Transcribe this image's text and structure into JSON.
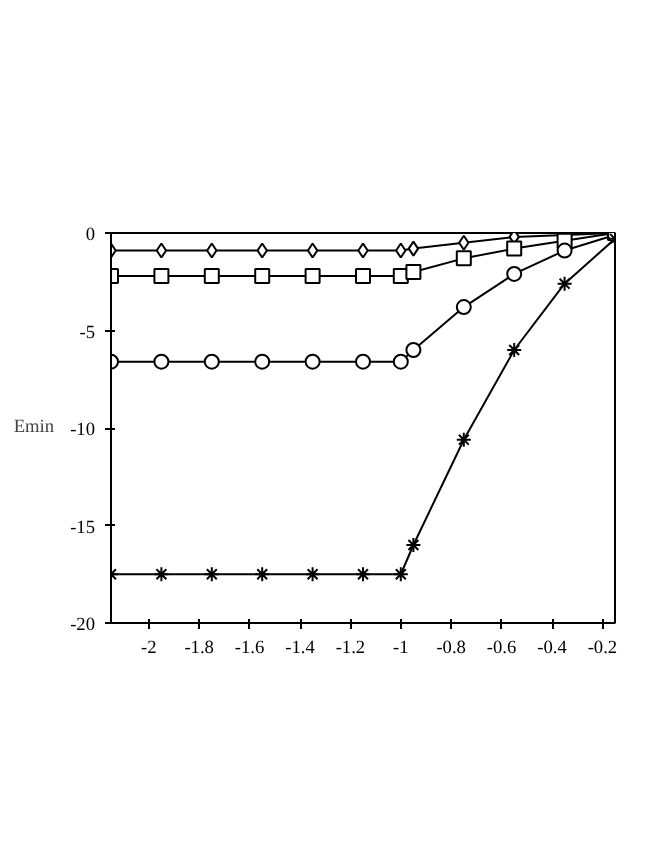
{
  "chart_data": {
    "type": "line",
    "ylabel": "Emin",
    "x": [
      -2.15,
      -1.95,
      -1.75,
      -1.55,
      -1.35,
      -1.15,
      -1.0,
      -0.95,
      -0.75,
      -0.55,
      -0.35,
      -0.15
    ],
    "series": [
      {
        "color": "#000000",
        "marker": "diamond",
        "values": [
          -0.9,
          -0.9,
          -0.9,
          -0.9,
          -0.9,
          -0.9,
          -0.9,
          -0.8,
          -0.5,
          -0.2,
          -0.1,
          0
        ]
      },
      {
        "color": "#000000",
        "marker": "square",
        "values": [
          -2.2,
          -2.2,
          -2.2,
          -2.2,
          -2.2,
          -2.2,
          -2.2,
          -2.0,
          -1.3,
          -0.8,
          -0.4,
          0
        ]
      },
      {
        "color": "#000000",
        "marker": "circle",
        "values": [
          -6.6,
          -6.6,
          -6.6,
          -6.6,
          -6.6,
          -6.6,
          -6.6,
          -6.0,
          -3.8,
          -2.1,
          -0.9,
          -0.1
        ]
      },
      {
        "color": "#000000",
        "marker": "cross",
        "values": [
          -17.5,
          -17.5,
          -17.5,
          -17.5,
          -17.5,
          -17.5,
          -17.5,
          -16.0,
          -10.6,
          -6.0,
          -2.6,
          -0.3
        ]
      }
    ],
    "xlim": [
      -2.15,
      -0.15
    ],
    "ylim": [
      -20,
      0
    ],
    "xticks": [
      -2,
      -1.8,
      -1.6,
      -1.4,
      -1.2,
      -1,
      -0.8,
      -0.6,
      -0.4,
      -0.2
    ],
    "yticks": [
      -20,
      -15,
      -10,
      -5,
      0
    ],
    "grid": false,
    "line_style": "solid"
  }
}
